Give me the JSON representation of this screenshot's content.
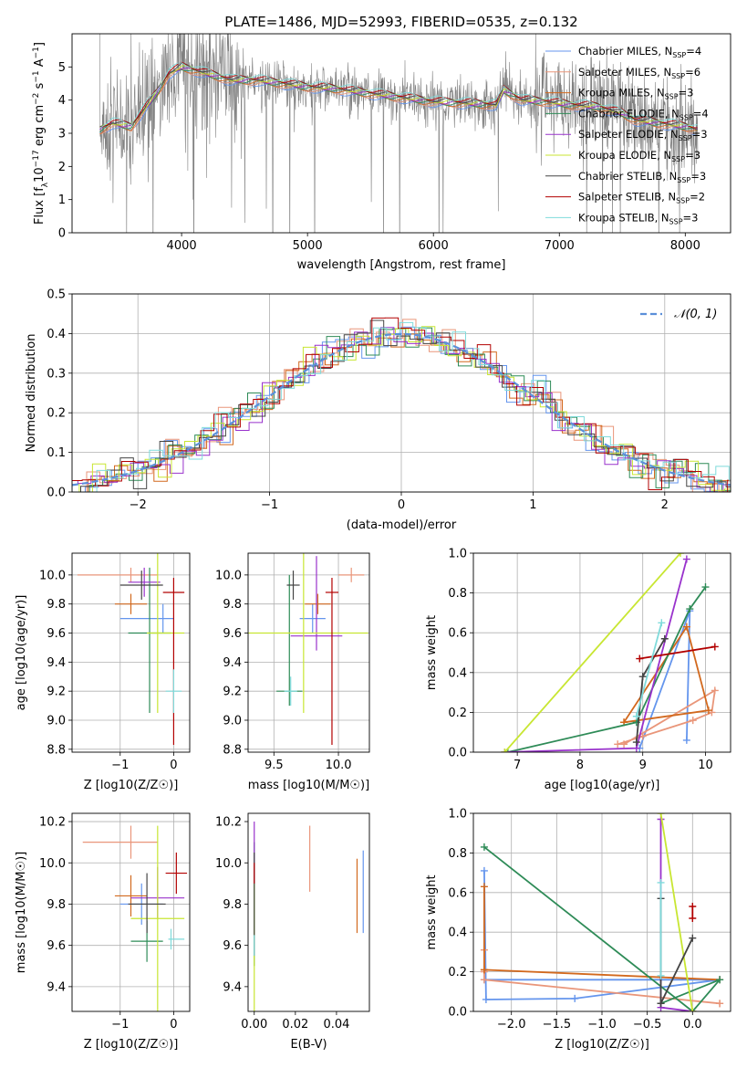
{
  "colors": {
    "Chabrier MILES": "#6495ed",
    "Salpeter MILES": "#e9967a",
    "Kroupa MILES": "#d2691e",
    "Chabrier ELODIE": "#2e8b57",
    "Salpeter ELODIE": "#9932cc",
    "Kroupa ELODIE": "#c8e632",
    "Chabrier STELIB": "#444444",
    "Salpeter STELIB": "#b20000",
    "Kroupa STELIB": "#7fdbdb",
    "data": "#808080"
  },
  "chart_data": [
    {
      "id": "spectrum",
      "type": "line",
      "title": "PLATE=1486, MJD=52993, FIBERID=0535, z=0.132",
      "xlabel": "wavelength [Angstrom, rest frame]",
      "ylabel": "Flux [f_λ 10^-17 erg cm^-2 s^-1 A^-1]",
      "xlim": [
        3130,
        8360
      ],
      "ylim": [
        0,
        6
      ],
      "xticks": [
        "4000",
        "5000",
        "6000",
        "7000",
        "8000"
      ],
      "yticks": [
        "0",
        "1",
        "2",
        "3",
        "4",
        "5"
      ],
      "grid": false,
      "legend_position": "top-right",
      "legend": [
        {
          "label": "Chabrier MILES, N_SSP=4",
          "color": "#6495ed"
        },
        {
          "label": "Salpeter MILES, N_SSP=6",
          "color": "#e9967a"
        },
        {
          "label": "Kroupa MILES, N_SSP=3",
          "color": "#d2691e"
        },
        {
          "label": "Chabrier ELODIE, N_SSP=4",
          "color": "#2e8b57"
        },
        {
          "label": "Salpeter ELODIE, N_SSP=3",
          "color": "#9932cc"
        },
        {
          "label": "Kroupa ELODIE, N_SSP=3",
          "color": "#c8e632"
        },
        {
          "label": "Chabrier STELIB, N_SSP=3",
          "color": "#444444"
        },
        {
          "label": "Salpeter STELIB, N_SSP=2",
          "color": "#b20000"
        },
        {
          "label": "Kroupa STELIB, N_SSP=3",
          "color": "#7fdbdb"
        }
      ],
      "model_continuum": {
        "x": [
          3350,
          3450,
          3600,
          3700,
          3800,
          3900,
          4000,
          4100,
          4200,
          4300,
          4400,
          4600,
          4800,
          5000,
          5200,
          5500,
          5800,
          6000,
          6300,
          6500,
          6560,
          6700,
          6900,
          7100,
          7300,
          7500,
          7600,
          7800,
          8000,
          8100
        ],
        "y": [
          3.1,
          3.3,
          3.2,
          3.7,
          4.2,
          4.8,
          5.0,
          4.9,
          4.8,
          4.7,
          4.6,
          4.6,
          4.5,
          4.4,
          4.35,
          4.2,
          4.05,
          3.95,
          3.9,
          3.85,
          4.3,
          4.0,
          3.95,
          3.85,
          3.8,
          3.6,
          3.4,
          3.3,
          3.2,
          3.1
        ]
      }
    },
    {
      "id": "residuals",
      "type": "histogram",
      "xlabel": "(data-model)/error",
      "ylabel": "Normed distribution",
      "xlim": [
        -2.5,
        2.5
      ],
      "ylim": [
        0,
        0.5
      ],
      "xticks": [
        "−2",
        "−1",
        "0",
        "1",
        "2"
      ],
      "yticks": [
        "0.0",
        "0.1",
        "0.2",
        "0.3",
        "0.4",
        "0.5"
      ],
      "grid": true,
      "legend_position": "top-right",
      "legend": [
        {
          "label": "𝒩(0, 1)",
          "color": "#5b8fd9",
          "style": "dashed"
        }
      ],
      "reference_curve": "normal pdf, mean 0, sigma 1"
    },
    {
      "id": "age_vs_Z",
      "type": "errorbar",
      "xlabel": "Z [log10(Z/Z☉)]",
      "ylabel": "age [log10(age/yr)]",
      "xlim": [
        -1.9,
        0.3
      ],
      "ylim": [
        8.78,
        10.15
      ],
      "xticks": [
        "−1",
        "0"
      ],
      "yticks": [
        "8.8",
        "9.0",
        "9.2",
        "9.4",
        "9.6",
        "9.8",
        "10.0"
      ],
      "grid": true,
      "points": [
        {
          "series": "Chabrier MILES",
          "x": -0.2,
          "xerr": [
            0.8,
            0.2
          ],
          "y": 9.7,
          "yerr": [
            0.1,
            0.1
          ]
        },
        {
          "series": "Salpeter MILES",
          "x": -0.8,
          "xerr": [
            1.0,
            0.5
          ],
          "y": 10.0,
          "yerr": [
            0.05,
            0.05
          ]
        },
        {
          "series": "Kroupa MILES",
          "x": -0.8,
          "xerr": [
            0.3,
            0.3
          ],
          "y": 9.8,
          "yerr": [
            0.07,
            0.07
          ]
        },
        {
          "series": "Chabrier ELODIE",
          "x": -0.45,
          "xerr": [
            0.4,
            0.4
          ],
          "y": 9.6,
          "yerr": [
            0.55,
            0.45
          ]
        },
        {
          "series": "Salpeter ELODIE",
          "x": -0.55,
          "xerr": [
            0.3,
            0.3
          ],
          "y": 9.95,
          "yerr": [
            0.1,
            0.1
          ]
        },
        {
          "series": "Kroupa ELODIE",
          "x": -0.3,
          "xerr": [
            0.2,
            0.5
          ],
          "y": 9.6,
          "yerr": [
            0.55,
            0.55
          ]
        },
        {
          "series": "Chabrier STELIB",
          "x": -0.6,
          "xerr": [
            0.4,
            0.4
          ],
          "y": 9.93,
          "yerr": [
            0.1,
            0.1
          ]
        },
        {
          "series": "Salpeter STELIB",
          "x": 0.0,
          "xerr": [
            0.2,
            0.2
          ],
          "y": 9.88,
          "yerr": [
            1.05,
            0.1
          ]
        },
        {
          "series": "Kroupa STELIB",
          "x": 0.0,
          "xerr": [
            0.15,
            0.15
          ],
          "y": 9.2,
          "yerr": [
            0.15,
            0.15
          ]
        }
      ]
    },
    {
      "id": "age_vs_mass",
      "type": "errorbar",
      "xlabel": "mass [log10(M/M☉)]",
      "ylabel": "",
      "xlim": [
        9.3,
        10.24
      ],
      "ylim": [
        8.78,
        10.15
      ],
      "xticks": [
        "9.5",
        "10.0"
      ],
      "yticks": [
        "8.8",
        "9.0",
        "9.2",
        "9.4",
        "9.6",
        "9.8",
        "10.0"
      ],
      "grid": true,
      "points": [
        {
          "series": "Chabrier MILES",
          "x": 9.8,
          "xerr": [
            0.1,
            0.1
          ],
          "y": 9.7,
          "yerr": [
            0.1,
            0.1
          ]
        },
        {
          "series": "Salpeter MILES",
          "x": 10.1,
          "xerr": [
            0.1,
            0.1
          ],
          "y": 10.0,
          "yerr": [
            0.05,
            0.05
          ]
        },
        {
          "series": "Kroupa MILES",
          "x": 9.84,
          "xerr": [
            0.1,
            0.1
          ],
          "y": 9.8,
          "yerr": [
            0.07,
            0.07
          ]
        },
        {
          "series": "Chabrier ELODIE",
          "x": 9.62,
          "xerr": [
            0.1,
            0.1
          ],
          "y": 9.2,
          "yerr": [
            0.1,
            0.8
          ]
        },
        {
          "series": "Salpeter ELODIE",
          "x": 9.83,
          "xerr": [
            0.2,
            0.2
          ],
          "y": 9.58,
          "yerr": [
            0.1,
            0.55
          ]
        },
        {
          "series": "Kroupa ELODIE",
          "x": 9.73,
          "xerr": [
            0.5,
            0.5
          ],
          "y": 9.6,
          "yerr": [
            0.55,
            0.55
          ]
        },
        {
          "series": "Chabrier STELIB",
          "x": 9.65,
          "xerr": [
            0.05,
            0.05
          ],
          "y": 9.93,
          "yerr": [
            0.1,
            0.1
          ]
        },
        {
          "series": "Salpeter STELIB",
          "x": 9.95,
          "xerr": [
            0.05,
            0.05
          ],
          "y": 9.88,
          "yerr": [
            1.05,
            0.1
          ]
        },
        {
          "series": "Kroupa STELIB",
          "x": 9.63,
          "xerr": [
            0.05,
            0.05
          ],
          "y": 9.2,
          "yerr": [
            0.1,
            0.1
          ]
        }
      ]
    },
    {
      "id": "weight_vs_age",
      "type": "line",
      "xlabel": "age [log10(age/yr)]",
      "ylabel": "mass weight",
      "xlim": [
        6.3,
        10.4
      ],
      "ylim": [
        0,
        1
      ],
      "xticks": [
        "7",
        "8",
        "9",
        "10"
      ],
      "yticks": [
        "0.0",
        "0.2",
        "0.4",
        "0.6",
        "0.8",
        "1.0"
      ],
      "grid": true,
      "series": [
        {
          "name": "Chabrier MILES",
          "x": [
            9.7,
            9.75,
            8.95
          ],
          "y": [
            0.06,
            0.71,
            0.02
          ]
        },
        {
          "name": "Salpeter MILES",
          "x": [
            8.6,
            9.0,
            9.8,
            10.1,
            10.15,
            8.7
          ],
          "y": [
            0.04,
            0.08,
            0.16,
            0.2,
            0.31,
            0.04
          ]
        },
        {
          "name": "Kroupa MILES",
          "x": [
            8.7,
            9.7,
            10.05,
            8.7
          ],
          "y": [
            0.15,
            0.63,
            0.21,
            0.15
          ]
        },
        {
          "name": "Chabrier ELODIE",
          "x": [
            6.85,
            8.9,
            9.75,
            10.0
          ],
          "y": [
            0.0,
            0.15,
            0.72,
            0.83
          ]
        },
        {
          "name": "Salpeter ELODIE",
          "x": [
            6.8,
            8.9,
            9.7
          ],
          "y": [
            0.0,
            0.02,
            0.97
          ]
        },
        {
          "name": "Kroupa ELODIE",
          "x": [
            6.8,
            9.6
          ],
          "y": [
            0.0,
            1.0
          ]
        },
        {
          "name": "Chabrier STELIB",
          "x": [
            8.9,
            9.0,
            9.35
          ],
          "y": [
            0.05,
            0.38,
            0.57
          ]
        },
        {
          "name": "Salpeter STELIB",
          "x": [
            8.95,
            10.15
          ],
          "y": [
            0.47,
            0.53
          ]
        },
        {
          "name": "Kroupa STELIB",
          "x": [
            8.9,
            9.3
          ],
          "y": [
            0.18,
            0.65
          ]
        }
      ]
    },
    {
      "id": "mass_vs_Z",
      "type": "errorbar",
      "xlabel": "Z [log10(Z/Z☉)]",
      "ylabel": "mass [log10(M/M☉)]",
      "xlim": [
        -1.9,
        0.3
      ],
      "ylim": [
        9.28,
        10.24
      ],
      "xticks": [
        "−1",
        "0"
      ],
      "yticks": [
        "9.4",
        "9.6",
        "9.8",
        "10.0",
        "10.2"
      ],
      "grid": true,
      "points": [
        {
          "series": "Chabrier MILES",
          "x": -0.6,
          "xerr": [
            0.4,
            0.4
          ],
          "y": 9.8,
          "yerr": [
            0.1,
            0.1
          ]
        },
        {
          "series": "Salpeter MILES",
          "x": -0.8,
          "xerr": [
            0.9,
            0.5
          ],
          "y": 10.1,
          "yerr": [
            0.08,
            0.08
          ]
        },
        {
          "series": "Kroupa MILES",
          "x": -0.8,
          "xerr": [
            0.3,
            0.3
          ],
          "y": 9.84,
          "yerr": [
            0.1,
            0.1
          ]
        },
        {
          "series": "Chabrier ELODIE",
          "x": -0.5,
          "xerr": [
            0.3,
            0.3
          ],
          "y": 9.62,
          "yerr": [
            0.1,
            0.1
          ]
        },
        {
          "series": "Salpeter ELODIE",
          "x": -0.3,
          "xerr": [
            0.5,
            0.5
          ],
          "y": 9.83,
          "yerr": [
            0.1,
            0.15
          ]
        },
        {
          "series": "Kroupa ELODIE",
          "x": -0.3,
          "xerr": [
            0.5,
            0.5
          ],
          "y": 9.73,
          "yerr": [
            0.45,
            0.45
          ]
        },
        {
          "series": "Chabrier STELIB",
          "x": -0.5,
          "xerr": [
            0.35,
            0.35
          ],
          "y": 9.8,
          "yerr": [
            0.14,
            0.15
          ]
        },
        {
          "series": "Salpeter STELIB",
          "x": 0.05,
          "xerr": [
            0.2,
            0.2
          ],
          "y": 9.95,
          "yerr": [
            0.1,
            0.1
          ]
        },
        {
          "series": "Kroupa STELIB",
          "x": -0.05,
          "xerr": [
            0.05,
            0.25
          ],
          "y": 9.63,
          "yerr": [
            0.05,
            0.05
          ]
        }
      ]
    },
    {
      "id": "mass_vs_EBV",
      "type": "errorbar",
      "xlabel": "E(B-V)",
      "ylabel": "",
      "xlim": [
        -0.003,
        0.056
      ],
      "ylim": [
        9.28,
        10.24
      ],
      "xticks": [
        "0.00",
        "0.02",
        "0.04"
      ],
      "yticks": [
        "9.4",
        "9.6",
        "9.8",
        "10.0",
        "10.2"
      ],
      "grid": false,
      "points": [
        {
          "series": "Chabrier MILES",
          "x": 0.053,
          "y": 9.86,
          "yerr": [
            0.2,
            0.2
          ]
        },
        {
          "series": "Salpeter MILES",
          "x": 0.027,
          "y": 10.02,
          "yerr": [
            0.16,
            0.16
          ]
        },
        {
          "series": "Kroupa MILES",
          "x": 0.05,
          "y": 9.84,
          "yerr": [
            0.18,
            0.18
          ]
        },
        {
          "series": "Chabrier ELODIE",
          "x": 0.0,
          "y": 9.8,
          "yerr": [
            0.3,
            0.3
          ]
        },
        {
          "series": "Salpeter ELODIE",
          "x": 0.0,
          "y": 10.05,
          "yerr": [
            0.15,
            0.15
          ]
        },
        {
          "series": "Kroupa ELODIE",
          "x": 0.0,
          "y": 9.6,
          "yerr": [
            0.32,
            0.3
          ]
        },
        {
          "series": "Chabrier STELIB",
          "x": 0.0,
          "y": 9.8,
          "yerr": [
            0.25,
            0.25
          ]
        },
        {
          "series": "Salpeter STELIB",
          "x": 0.0,
          "y": 9.95,
          "yerr": [
            0.05,
            0.05
          ]
        },
        {
          "series": "Kroupa STELIB",
          "x": 0.0,
          "y": 9.6,
          "yerr": [
            0.05,
            0.05
          ]
        }
      ]
    },
    {
      "id": "weight_vs_Z",
      "type": "line",
      "xlabel": "Z [log10(Z/Z☉)]",
      "ylabel": "mass weight",
      "xlim": [
        -2.42,
        0.42
      ],
      "ylim": [
        0,
        1
      ],
      "xticks": [
        "−2.0",
        "−1.5",
        "−1.0",
        "−0.5",
        "0.0"
      ],
      "yticks": [
        "0.0",
        "0.2",
        "0.4",
        "0.6",
        "0.8",
        "1.0"
      ],
      "grid": true,
      "series": [
        {
          "name": "Chabrier MILES",
          "x": [
            -2.3,
            -2.28,
            -1.3,
            0.3,
            -2.3
          ],
          "y": [
            0.71,
            0.06,
            0.065,
            0.16,
            0.16
          ]
        },
        {
          "name": "Salpeter MILES",
          "x": [
            -2.3,
            -2.3,
            -2.3,
            0.3,
            0.3
          ],
          "y": [
            0.31,
            0.2,
            0.16,
            0.04,
            0.04
          ]
        },
        {
          "name": "Kroupa MILES",
          "x": [
            -2.3,
            -2.3,
            0.3,
            -2.3
          ],
          "y": [
            0.63,
            0.21,
            0.16,
            0.21
          ]
        },
        {
          "name": "Chabrier ELODIE",
          "x": [
            -2.3,
            0.0,
            0.3,
            -0.35
          ],
          "y": [
            0.83,
            0.0,
            0.16,
            0.04
          ]
        },
        {
          "name": "Salpeter ELODIE",
          "x": [
            -0.35,
            -0.35,
            0.0
          ],
          "y": [
            0.97,
            0.02,
            0.0
          ]
        },
        {
          "name": "Kroupa ELODIE",
          "x": [
            -0.35,
            0.0
          ],
          "y": [
            1.0,
            0.0
          ]
        },
        {
          "name": "Chabrier STELIB",
          "x": [
            -0.35,
            -0.35,
            0.0,
            -0.35
          ],
          "y": [
            0.57,
            0.04,
            0.37,
            0.04
          ]
        },
        {
          "name": "Salpeter STELIB",
          "x": [
            0.0,
            0.0
          ],
          "y": [
            0.53,
            0.47
          ]
        },
        {
          "name": "Kroupa STELIB",
          "x": [
            -0.35,
            -0.35
          ],
          "y": [
            0.65,
            0.18
          ]
        }
      ]
    }
  ]
}
